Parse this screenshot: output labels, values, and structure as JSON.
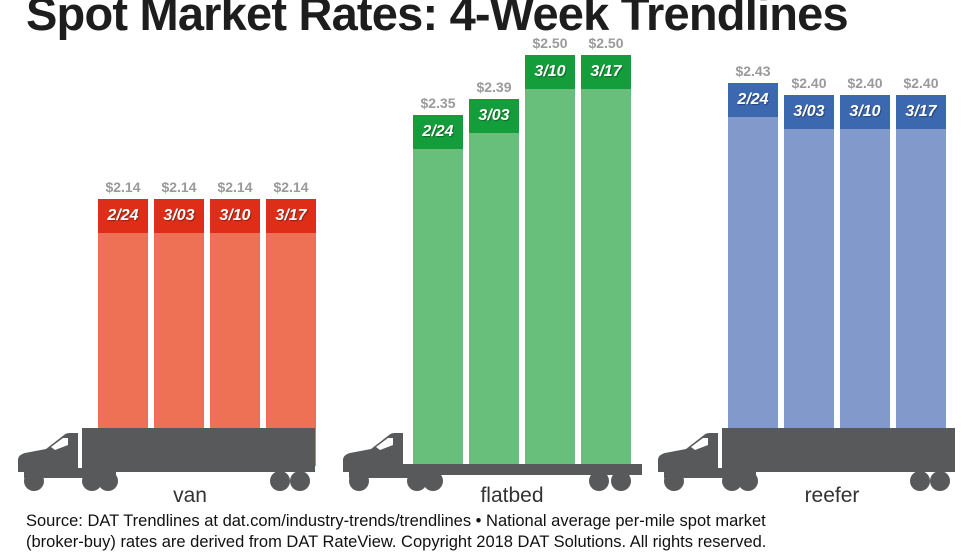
{
  "title": "Spot Market Rates: 4-Week Trendlines",
  "chart_data": {
    "type": "bar",
    "title": "Spot Market Rates: 4-Week Trendlines",
    "unit": "$ per mile",
    "categories": [
      "2/24",
      "3/03",
      "3/10",
      "3/17"
    ],
    "series": [
      {
        "name": "van",
        "values": [
          2.14,
          2.14,
          2.14,
          2.14
        ],
        "header_color": "#de2e18",
        "body_color": "#ee7055"
      },
      {
        "name": "flatbed",
        "values": [
          2.35,
          2.39,
          2.5,
          2.5
        ],
        "header_color": "#149e3b",
        "body_color": "#68bf7b"
      },
      {
        "name": "reefer",
        "values": [
          2.43,
          2.4,
          2.4,
          2.4
        ],
        "header_color": "#3c68b0",
        "body_color": "#8299cc"
      }
    ],
    "value_label_prefix": "$",
    "legend": "none",
    "gridlines": false,
    "baseline": "truck bed"
  },
  "colors": {
    "truck": "#58595b",
    "title_text": "#1d1d1d",
    "value_label": "#9a9a9a",
    "category_label": "#333333",
    "source_text": "#111111",
    "date_text": "#ffffff"
  },
  "source": {
    "line1": "Source: DAT Trendlines at dat.com/industry-trends/trendlines • National average per-mile spot market",
    "line2": "(broker-buy) rates are derived from DAT RateView. Copyright 2018 DAT Solutions. All rights reserved."
  }
}
